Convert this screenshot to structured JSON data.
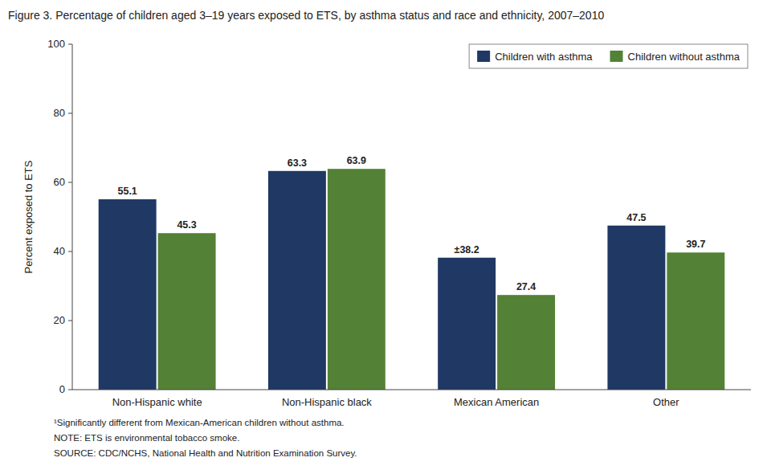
{
  "chart_data": {
    "type": "bar",
    "title": "Figure 3. Percentage of children aged 3–19 years exposed to ETS, by asthma status and race and ethnicity, 2007–2010",
    "categories": [
      "Non-Hispanic white",
      "Non-Hispanic black",
      "Mexican American",
      "Other"
    ],
    "series": [
      {
        "name": "Children with asthma",
        "color": "#1F3864",
        "values": [
          55.1,
          63.3,
          38.2,
          47.5
        ],
        "value_labels": [
          "55.1",
          "63.3",
          "±38.2",
          "47.5"
        ]
      },
      {
        "name": "Children without asthma",
        "color": "#538135",
        "values": [
          45.3,
          63.9,
          27.4,
          39.7
        ]
      }
    ],
    "ylabel": "Percent exposed to ETS",
    "ylim": [
      0,
      100
    ],
    "yticks": [
      0,
      20,
      40,
      60,
      80,
      100
    ],
    "annotations": [
      "¹Significantly different from Mexican-American children without asthma.",
      "NOTE: ETS is environmental tobacco smoke.",
      "SOURCE: CDC/NCHS, National Health and Nutrition Examination Survey."
    ],
    "legend": "upper right",
    "grid": false,
    "data_labels": true
  }
}
